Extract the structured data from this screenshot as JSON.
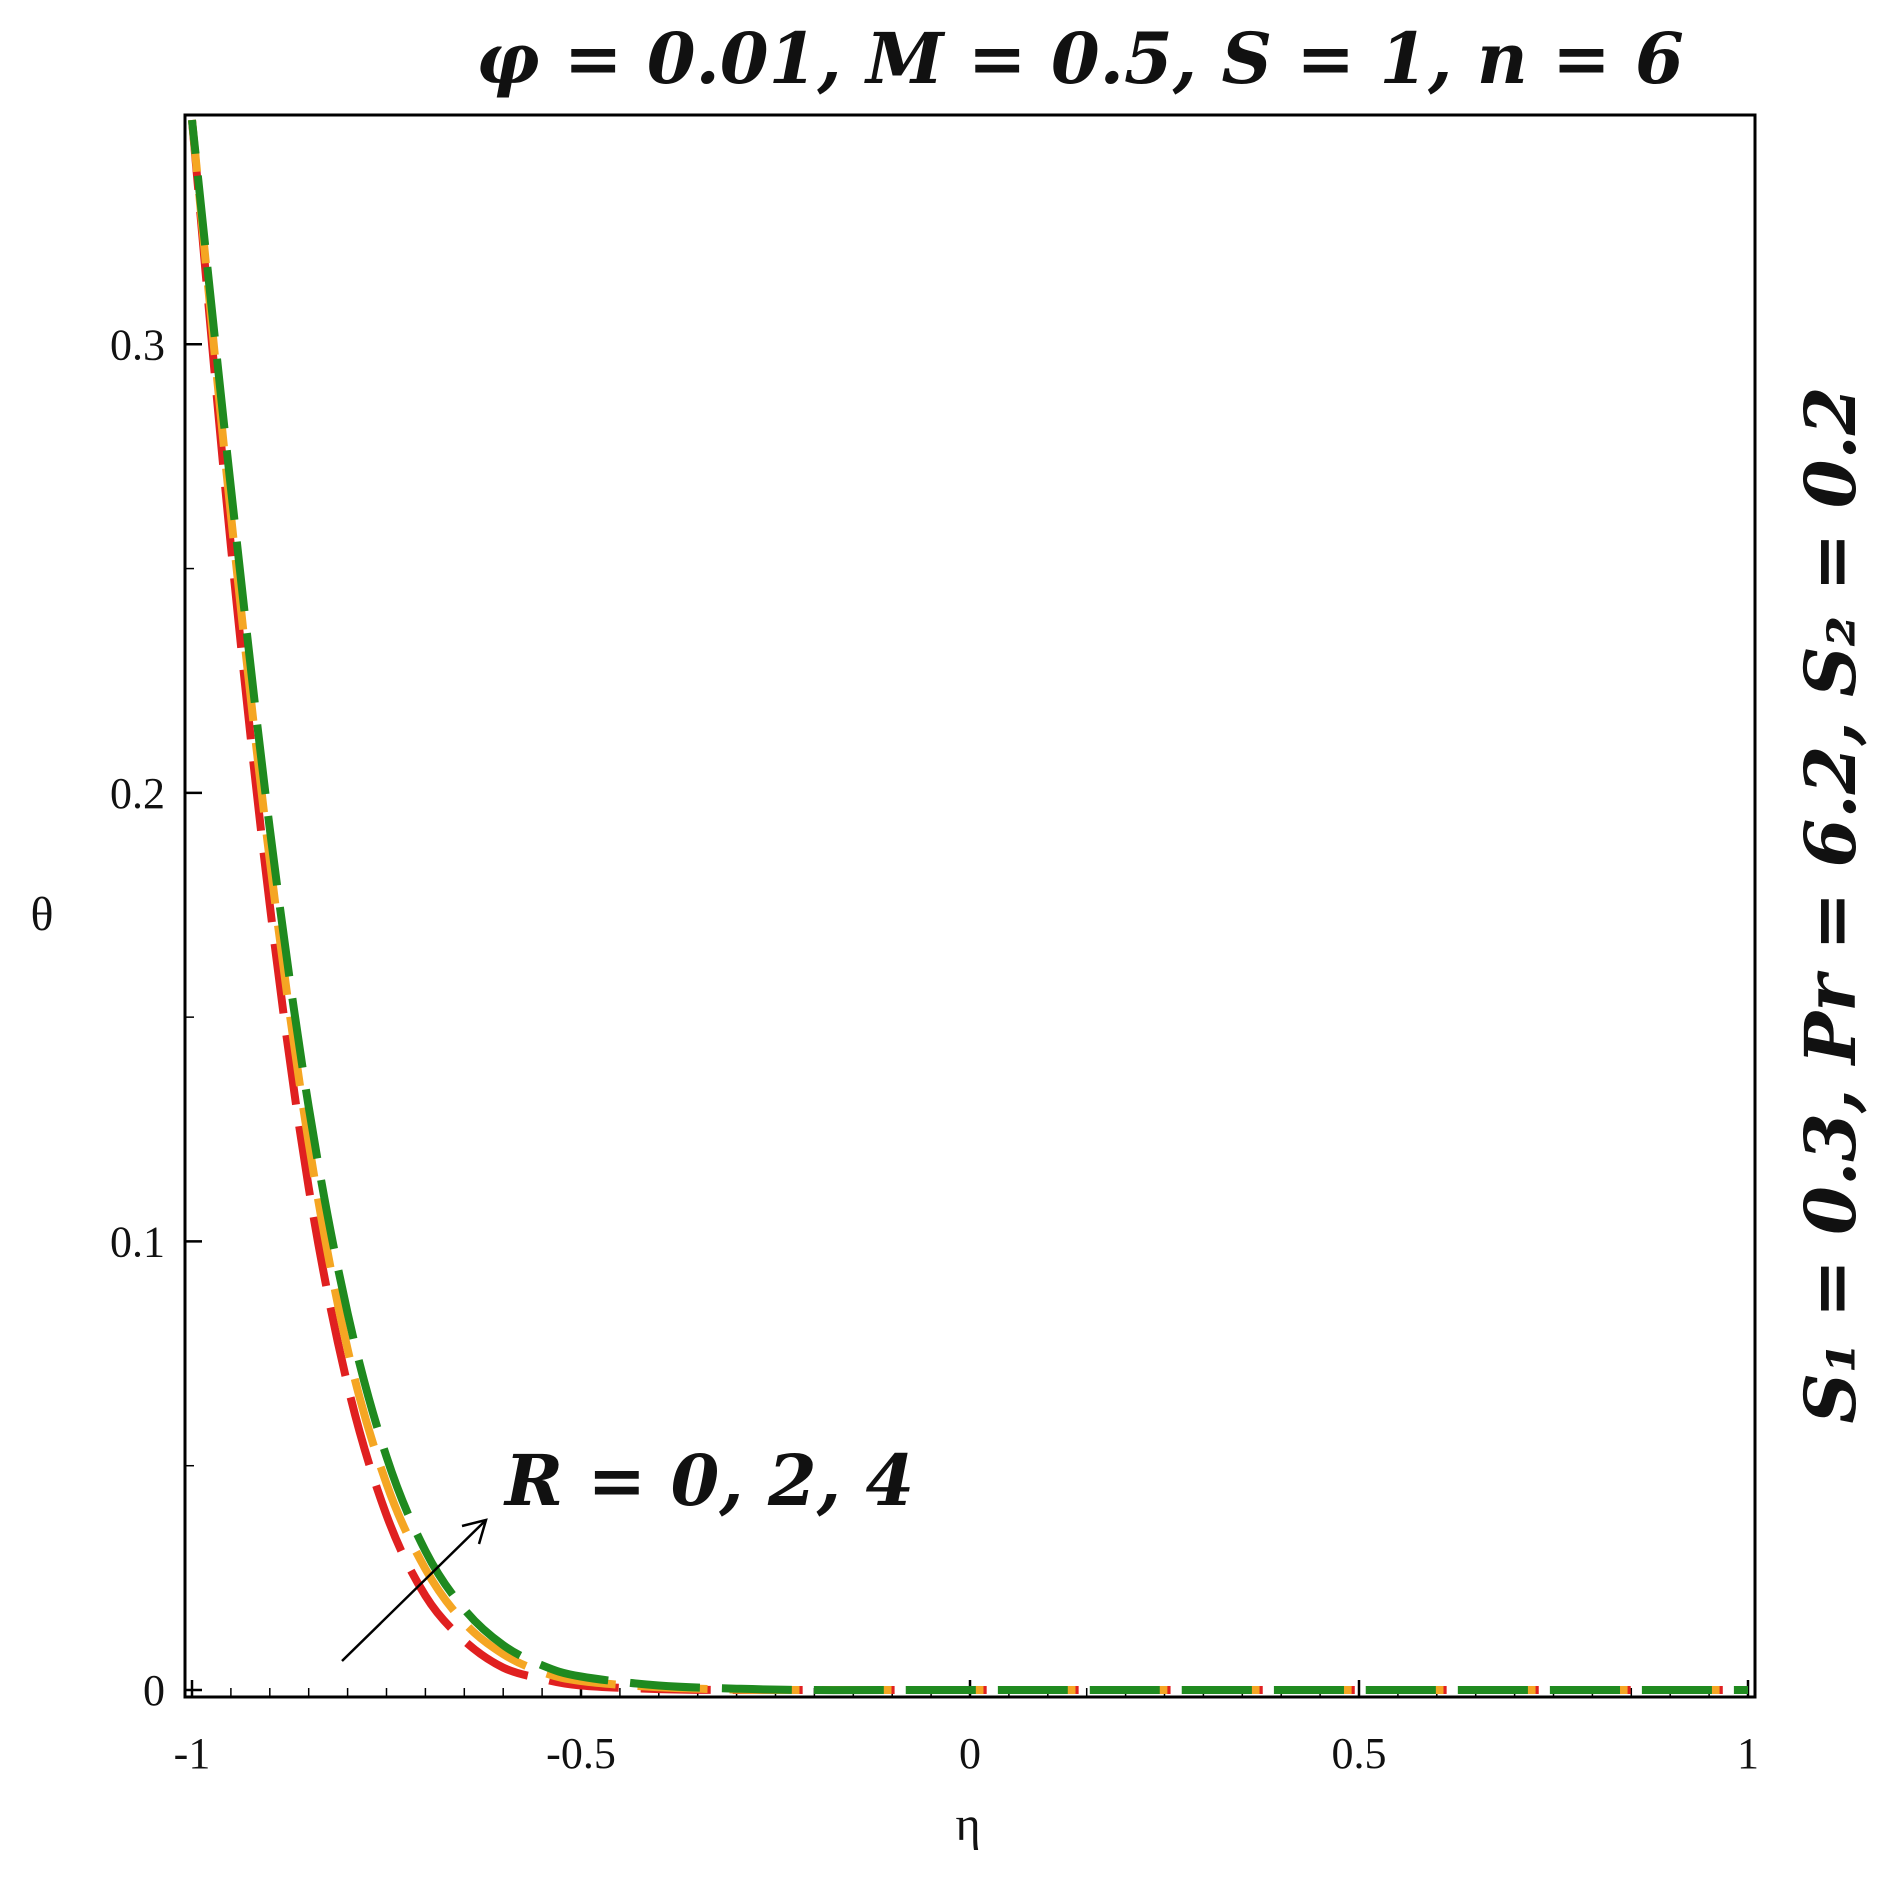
{
  "chart_data": {
    "type": "line",
    "title": "φ = 0.01, M = 0.5, S = 1, n = 6",
    "side_label": "S₁ = 0.3, Pr = 6.2, S₂ = 0.2",
    "annotation": "R = 0, 2, 4",
    "xlabel": "η",
    "ylabel": "θ",
    "xlim": [
      -1,
      1
    ],
    "ylim": [
      0,
      0.35
    ],
    "xticks": [
      -1,
      -0.5,
      0,
      0.5,
      1
    ],
    "xtick_labels": [
      "-1",
      "-0.5",
      "0",
      "0.5",
      "1"
    ],
    "yticks": [
      0,
      0.1,
      0.2,
      0.3
    ],
    "ytick_labels": [
      "0",
      "0.1",
      "0.2",
      "0.3"
    ],
    "grid": false,
    "legend": "none",
    "series": [
      {
        "color": "#e02020",
        "line_style": "dashed",
        "x": [
          -1.0,
          -0.95,
          -0.9,
          -0.85,
          -0.8,
          -0.75,
          -0.7,
          -0.65,
          -0.6,
          -0.55,
          -0.5,
          -0.4,
          -0.3,
          -0.2,
          0,
          0.5,
          1.0
        ],
        "y": [
          0.35,
          0.255,
          0.175,
          0.112,
          0.068,
          0.039,
          0.021,
          0.011,
          0.005,
          0.0025,
          0.001,
          0.0002,
          0.0,
          0.0,
          0.0,
          0.0,
          0.0
        ]
      },
      {
        "color": "#f5a623",
        "line_style": "dashed",
        "x": [
          -1.0,
          -0.95,
          -0.9,
          -0.85,
          -0.8,
          -0.75,
          -0.7,
          -0.65,
          -0.6,
          -0.55,
          -0.5,
          -0.4,
          -0.3,
          -0.2,
          0,
          0.5,
          1.0
        ],
        "y": [
          0.35,
          0.262,
          0.185,
          0.122,
          0.076,
          0.046,
          0.027,
          0.015,
          0.008,
          0.004,
          0.002,
          0.0006,
          0.0001,
          0.0,
          0.0,
          0.0,
          0.0
        ]
      },
      {
        "color": "#1f8a1f",
        "line_style": "dashed",
        "x": [
          -1.0,
          -0.95,
          -0.9,
          -0.85,
          -0.8,
          -0.75,
          -0.7,
          -0.65,
          -0.6,
          -0.55,
          -0.5,
          -0.4,
          -0.3,
          -0.2,
          0,
          0.5,
          1.0
        ],
        "y": [
          0.35,
          0.268,
          0.192,
          0.13,
          0.084,
          0.052,
          0.031,
          0.018,
          0.01,
          0.0055,
          0.003,
          0.001,
          0.0003,
          0.0,
          0.0,
          0.0,
          0.0
        ]
      }
    ]
  }
}
